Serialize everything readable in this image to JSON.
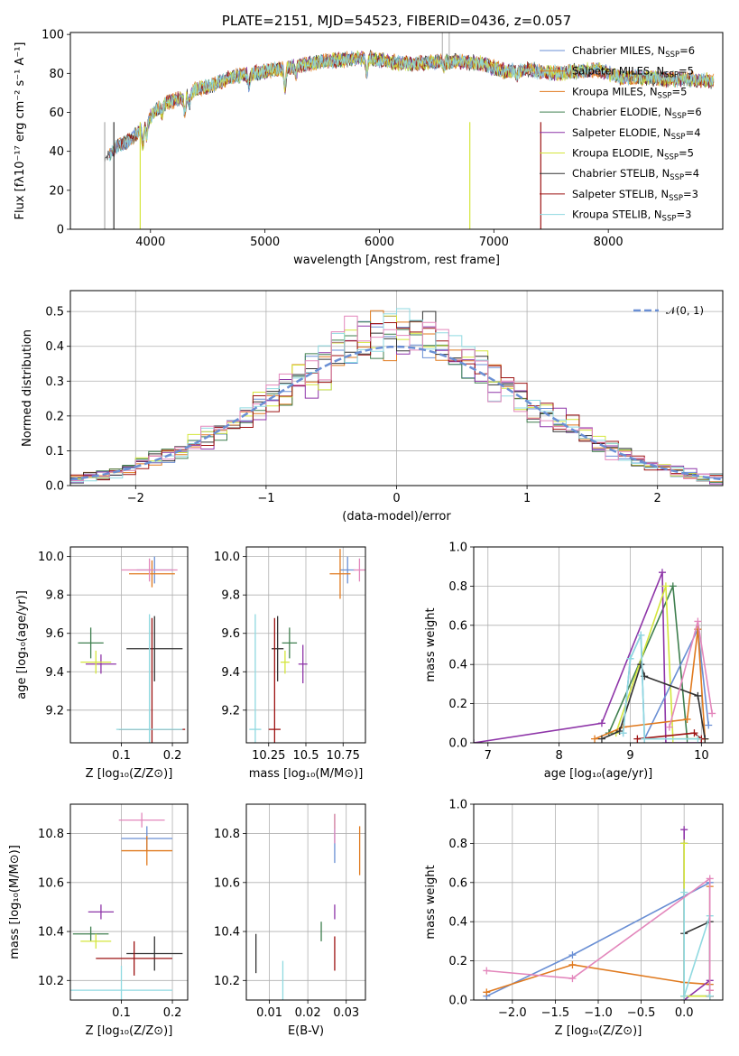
{
  "colors": [
    "#6a8fd4",
    "#e07a1f",
    "#3f7f4f",
    "#8e35a8",
    "#d4e63c",
    "#333333",
    "#9c1212",
    "#8fd9e0",
    "#e387bc"
  ],
  "chart_data": [
    {
      "id": "spectrum",
      "type": "line",
      "title": "PLATE=2151, MJD=54523, FIBERID=0436, z=0.057",
      "xlabel": "wavelength [Angstrom, rest frame]",
      "ylabel": "Flux [fλ10⁻¹⁷ erg cm⁻² s⁻¹ A⁻¹]",
      "xlim": [
        3300,
        9000
      ],
      "ylim": [
        0,
        101
      ],
      "xticks": [
        4000,
        5000,
        6000,
        7000,
        8000
      ],
      "yticks": [
        0,
        20,
        40,
        60,
        80,
        100
      ],
      "grid": false,
      "legend_position": "top-right",
      "legend": [
        {
          "label": "Chabrier MILES, N",
          "sub": "SSP",
          "suffix": "=6",
          "color": "#6a8fd4"
        },
        {
          "label": "Salpeter MILES, N",
          "sub": "SSP",
          "suffix": "=5",
          "color": "#e07a1f"
        },
        {
          "label": "Kroupa MILES, N",
          "sub": "SSP",
          "suffix": "=5",
          "color": "#e07a1f"
        },
        {
          "label": "Chabrier ELODIE, N",
          "sub": "SSP",
          "suffix": "=6",
          "color": "#3f7f4f"
        },
        {
          "label": "Salpeter ELODIE, N",
          "sub": "SSP",
          "suffix": "=4",
          "color": "#8e35a8"
        },
        {
          "label": "Kroupa ELODIE, N",
          "sub": "SSP",
          "suffix": "=5",
          "color": "#d4e63c"
        },
        {
          "label": "Chabrier STELIB, N",
          "sub": "SSP",
          "suffix": "=4",
          "color": "#333333"
        },
        {
          "label": "Salpeter STELIB, N",
          "sub": "SSP",
          "suffix": "=3",
          "color": "#9c1212"
        },
        {
          "label": "Kroupa STELIB, N",
          "sub": "SSP",
          "suffix": "=3",
          "color": "#8fd9e0"
        }
      ],
      "continuum": {
        "x": [
          3600,
          3700,
          3800,
          3900,
          4000,
          4100,
          4200,
          4300,
          4400,
          4500,
          4700,
          4900,
          5100,
          5300,
          5500,
          5700,
          5900,
          6100,
          6300,
          6500,
          6700,
          6900,
          7100,
          7300,
          7500,
          7700,
          7900,
          8100,
          8300,
          8500,
          8700,
          8900
        ],
        "y": [
          36,
          42,
          45,
          50,
          58,
          64,
          66,
          68,
          72,
          73,
          78,
          80,
          82,
          84,
          86,
          87,
          88,
          86,
          85,
          86,
          86,
          85,
          81,
          82,
          80,
          81,
          82,
          78,
          78,
          77,
          77,
          76
        ]
      }
    },
    {
      "id": "residuals",
      "type": "histogram",
      "xlabel": "(data-model)/error",
      "ylabel": "Normed distribution",
      "xlim": [
        -2.5,
        2.5
      ],
      "ylim": [
        0,
        0.56
      ],
      "xticks": [
        -2,
        -1,
        0,
        1,
        2
      ],
      "yticks": [
        0.0,
        0.1,
        0.2,
        0.3,
        0.4,
        0.5
      ],
      "grid": true,
      "legend_position": "top-right",
      "legend": [
        {
          "label": "𝒩(0, 1)",
          "style": "dashed",
          "color": "#6a8fd4"
        }
      ],
      "bin_width": 0.1
    },
    {
      "id": "age-vs-Z",
      "type": "errorbar",
      "xlabel": "Z [log₁₀(Z/Z⊙)]",
      "ylabel": "age  [log₁₀(age/yr)]",
      "xlim": [
        0.0,
        0.23
      ],
      "ylim": [
        9.03,
        10.05
      ],
      "xticks": [
        0.1,
        0.2
      ],
      "yticks": [
        9.2,
        9.4,
        9.6,
        9.8,
        10.0
      ],
      "grid": true,
      "points": [
        {
          "x": 0.165,
          "y": 9.93,
          "xerr": 0.035,
          "yerr": 0.07,
          "color": "#6a8fd4"
        },
        {
          "x": 0.16,
          "y": 9.91,
          "xerr": 0.045,
          "yerr": 0.07,
          "color": "#e07a1f"
        },
        {
          "x": 0.04,
          "y": 9.55,
          "xerr": 0.025,
          "yerr": 0.08,
          "color": "#3f7f4f"
        },
        {
          "x": 0.06,
          "y": 9.44,
          "xerr": 0.03,
          "yerr": 0.05,
          "color": "#8e35a8"
        },
        {
          "x": 0.05,
          "y": 9.45,
          "xerr": 0.03,
          "yerr": 0.06,
          "color": "#d4e63c"
        },
        {
          "x": 0.165,
          "y": 9.52,
          "xerr": 0.055,
          "yerr": 0.17,
          "color": "#333333"
        },
        {
          "x": 0.16,
          "y": 9.1,
          "xerr": 0.065,
          "yerr": 0.58,
          "color": "#9c1212"
        },
        {
          "x": 0.155,
          "y": 9.1,
          "xerr": 0.065,
          "yerr": 0.6,
          "color": "#8fd9e0"
        },
        {
          "x": 0.155,
          "y": 9.93,
          "xerr": 0.055,
          "yerr": 0.06,
          "color": "#e387bc"
        }
      ]
    },
    {
      "id": "age-vs-mass",
      "type": "errorbar",
      "xlabel": "mass [log₁₀(M/M⊙)]",
      "ylabel": "",
      "xlim": [
        10.1,
        10.9
      ],
      "ylim": [
        9.03,
        10.05
      ],
      "xticks": [
        10.25,
        10.5,
        10.75
      ],
      "yticks": [
        9.2,
        9.4,
        9.6,
        9.8,
        10.0
      ],
      "grid": true,
      "points": [
        {
          "x": 10.78,
          "y": 9.93,
          "xerr": 0.05,
          "yerr": 0.07,
          "color": "#6a8fd4"
        },
        {
          "x": 10.73,
          "y": 9.91,
          "xerr": 0.07,
          "yerr": 0.13,
          "color": "#e07a1f"
        },
        {
          "x": 10.39,
          "y": 9.55,
          "xerr": 0.05,
          "yerr": 0.08,
          "color": "#3f7f4f"
        },
        {
          "x": 10.48,
          "y": 9.44,
          "xerr": 0.03,
          "yerr": 0.1,
          "color": "#8e35a8"
        },
        {
          "x": 10.36,
          "y": 9.45,
          "xerr": 0.03,
          "yerr": 0.06,
          "color": "#d4e63c"
        },
        {
          "x": 10.31,
          "y": 9.52,
          "xerr": 0.04,
          "yerr": 0.17,
          "color": "#333333"
        },
        {
          "x": 10.29,
          "y": 9.1,
          "xerr": 0.04,
          "yerr": 0.58,
          "color": "#9c1212"
        },
        {
          "x": 10.16,
          "y": 9.1,
          "xerr": 0.04,
          "yerr": 0.6,
          "color": "#8fd9e0"
        },
        {
          "x": 10.86,
          "y": 9.93,
          "xerr": 0.04,
          "yerr": 0.06,
          "color": "#e387bc"
        }
      ]
    },
    {
      "id": "weight-vs-age",
      "type": "line",
      "xlabel": "age  [log₁₀(age/yr)]",
      "ylabel": "mass weight",
      "xlim": [
        6.8,
        10.3
      ],
      "ylim": [
        0.0,
        1.0
      ],
      "xticks": [
        7,
        8,
        9,
        10
      ],
      "yticks": [
        0.0,
        0.2,
        0.4,
        0.6,
        0.8,
        1.0
      ],
      "grid": true,
      "series": [
        {
          "color": "#3f7f4f",
          "x": [
            8.7,
            9.6,
            9.8,
            10.05
          ],
          "y": [
            0.05,
            0.8,
            0.02,
            0.02
          ]
        },
        {
          "color": "#8e35a8",
          "x": [
            6.8,
            8.6,
            9.45,
            9.5,
            10.0
          ],
          "y": [
            0.0,
            0.1,
            0.87,
            0.0,
            0.0
          ]
        },
        {
          "color": "#d4e63c",
          "x": [
            8.8,
            9.5,
            9.6,
            10.05
          ],
          "y": [
            0.05,
            0.8,
            0.02,
            0.02
          ]
        },
        {
          "color": "#6a8fd4",
          "x": [
            8.9,
            9.0,
            9.15,
            9.2,
            9.95,
            10.1
          ],
          "y": [
            0.05,
            0.43,
            0.55,
            0.02,
            0.58,
            0.09
          ]
        },
        {
          "color": "#e07a1f",
          "x": [
            8.5,
            8.9,
            9.8,
            9.95,
            10.05
          ],
          "y": [
            0.02,
            0.08,
            0.12,
            0.58,
            0.02
          ]
        },
        {
          "color": "#333333",
          "x": [
            8.6,
            8.85,
            9.15,
            9.2,
            9.95,
            10.05
          ],
          "y": [
            0.02,
            0.06,
            0.4,
            0.34,
            0.24,
            0.02
          ]
        },
        {
          "color": "#9c1212",
          "x": [
            9.1,
            9.9,
            10.0
          ],
          "y": [
            0.02,
            0.05,
            0.02
          ]
        },
        {
          "color": "#8fd9e0",
          "x": [
            8.9,
            9.0,
            9.15,
            9.2,
            9.95
          ],
          "y": [
            0.05,
            0.43,
            0.55,
            0.02,
            0.02
          ]
        },
        {
          "color": "#e387bc",
          "x": [
            9.55,
            9.95,
            10.15
          ],
          "y": [
            0.08,
            0.62,
            0.15
          ]
        }
      ]
    },
    {
      "id": "mass-vs-Z",
      "type": "errorbar",
      "xlabel": "Z [log₁₀(Z/Z⊙)]",
      "ylabel": "mass [log₁₀(M/M⊙)]",
      "xlim": [
        0.0,
        0.23
      ],
      "ylim": [
        10.12,
        10.92
      ],
      "xticks": [
        0.1,
        0.2
      ],
      "yticks": [
        10.2,
        10.4,
        10.6,
        10.8
      ],
      "grid": true,
      "points": [
        {
          "x": 0.15,
          "y": 10.78,
          "xerr": 0.05,
          "yerr": 0.05,
          "color": "#6a8fd4"
        },
        {
          "x": 0.15,
          "y": 10.73,
          "xerr": 0.05,
          "yerr": 0.06,
          "color": "#e07a1f"
        },
        {
          "x": 0.04,
          "y": 10.39,
          "xerr": 0.035,
          "yerr": 0.03,
          "color": "#3f7f4f"
        },
        {
          "x": 0.06,
          "y": 10.48,
          "xerr": 0.025,
          "yerr": 0.03,
          "color": "#8e35a8"
        },
        {
          "x": 0.05,
          "y": 10.36,
          "xerr": 0.03,
          "yerr": 0.03,
          "color": "#d4e63c"
        },
        {
          "x": 0.165,
          "y": 10.31,
          "xerr": 0.055,
          "yerr": 0.07,
          "color": "#333333"
        },
        {
          "x": 0.125,
          "y": 10.29,
          "xerr": 0.075,
          "yerr": 0.07,
          "color": "#9c1212"
        },
        {
          "x": 0.1,
          "y": 10.16,
          "xerr": 0.1,
          "yerr": 0.1,
          "color": "#8fd9e0"
        },
        {
          "x": 0.14,
          "y": 10.855,
          "xerr": 0.045,
          "yerr": 0.03,
          "color": "#e387bc"
        }
      ]
    },
    {
      "id": "mass-vs-EBV",
      "type": "errorbar",
      "xlabel": "E(B-V)",
      "ylabel": "",
      "xlim": [
        0.004,
        0.035
      ],
      "ylim": [
        10.12,
        10.92
      ],
      "xticks": [
        0.01,
        0.02,
        0.03
      ],
      "yticks": [
        10.2,
        10.4,
        10.6,
        10.8
      ],
      "grid": true,
      "points": [
        {
          "x": 0.027,
          "y": 10.78,
          "xerr": 0.0,
          "yerr": 0.1,
          "color": "#6a8fd4"
        },
        {
          "x": 0.0335,
          "y": 10.73,
          "xerr": 0.0,
          "yerr": 0.1,
          "color": "#e07a1f"
        },
        {
          "x": 0.0235,
          "y": 10.4,
          "xerr": 0.0,
          "yerr": 0.04,
          "color": "#3f7f4f"
        },
        {
          "x": 0.027,
          "y": 10.48,
          "xerr": 0.0,
          "yerr": 0.03,
          "color": "#8e35a8"
        },
        {
          "x": 0.027,
          "y": 10.85,
          "xerr": 0.0,
          "yerr": 0.03,
          "color": "#d4e63c"
        },
        {
          "x": 0.0065,
          "y": 10.31,
          "xerr": 0.0,
          "yerr": 0.08,
          "color": "#333333"
        },
        {
          "x": 0.027,
          "y": 10.31,
          "xerr": 0.0,
          "yerr": 0.07,
          "color": "#9c1212"
        },
        {
          "x": 0.0135,
          "y": 10.2,
          "xerr": 0.0,
          "yerr": 0.08,
          "color": "#8fd9e0"
        },
        {
          "x": 0.027,
          "y": 10.82,
          "xerr": 0.0,
          "yerr": 0.06,
          "color": "#e387bc"
        }
      ]
    },
    {
      "id": "weight-vs-Z",
      "type": "line",
      "xlabel": "Z [log₁₀(Z/Z⊙)]",
      "ylabel": "mass weight",
      "xlim": [
        -2.45,
        0.45
      ],
      "ylim": [
        0.0,
        1.0
      ],
      "xticks": [
        -2.0,
        -1.5,
        -1.0,
        -0.5,
        0.0
      ],
      "yticks": [
        0.0,
        0.2,
        0.4,
        0.6,
        0.8,
        1.0
      ],
      "grid": true,
      "series": [
        {
          "color": "#6a8fd4",
          "x": [
            -2.3,
            -1.3,
            0.3,
            0.3
          ],
          "y": [
            0.02,
            0.23,
            0.6,
            0.08
          ]
        },
        {
          "color": "#e07a1f",
          "x": [
            -2.3,
            -1.3,
            0.0,
            0.3,
            0.3
          ],
          "y": [
            0.04,
            0.18,
            0.09,
            0.08,
            0.58
          ]
        },
        {
          "color": "#3f7f4f",
          "x": [
            0.0,
            0.0,
            0.3
          ],
          "y": [
            0.8,
            0.02,
            0.02
          ]
        },
        {
          "color": "#8e35a8",
          "x": [
            0.0,
            0.0,
            0.3
          ],
          "y": [
            0.87,
            0.0,
            0.1
          ]
        },
        {
          "color": "#d4e63c",
          "x": [
            0.0,
            0.0,
            0.3
          ],
          "y": [
            0.8,
            0.02,
            0.02
          ]
        },
        {
          "color": "#333333",
          "x": [
            0.0,
            0.3,
            0.3
          ],
          "y": [
            0.34,
            0.4,
            0.02
          ]
        },
        {
          "color": "#9c1212",
          "x": [
            0.3,
            0.3
          ],
          "y": [
            0.05,
            0.02
          ]
        },
        {
          "color": "#8fd9e0",
          "x": [
            0.0,
            0.0,
            0.3,
            0.3
          ],
          "y": [
            0.55,
            0.02,
            0.43,
            0.02
          ]
        },
        {
          "color": "#e387bc",
          "x": [
            -2.3,
            -1.3,
            0.3,
            0.3
          ],
          "y": [
            0.15,
            0.11,
            0.62,
            0.05
          ]
        }
      ]
    }
  ]
}
